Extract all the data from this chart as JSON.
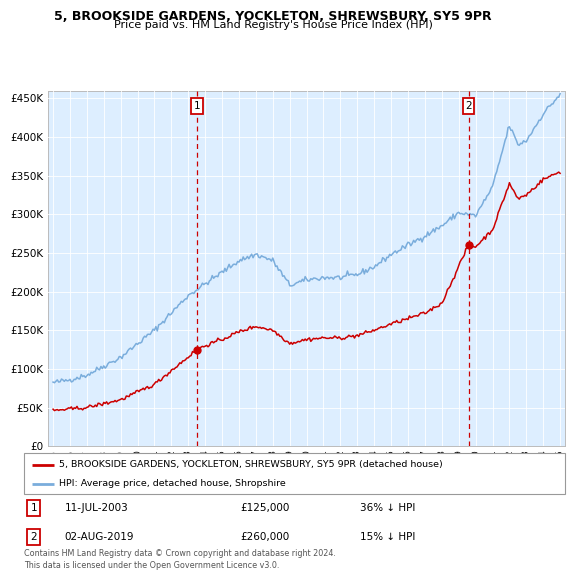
{
  "title": "5, BROOKSIDE GARDENS, YOCKLETON, SHREWSBURY, SY5 9PR",
  "subtitle": "Price paid vs. HM Land Registry's House Price Index (HPI)",
  "legend_line1": "5, BROOKSIDE GARDENS, YOCKLETON, SHREWSBURY, SY5 9PR (detached house)",
  "legend_line2": "HPI: Average price, detached house, Shropshire",
  "annotation1_date": "11-JUL-2003",
  "annotation1_price": "£125,000",
  "annotation1_hpi": "36% ↓ HPI",
  "annotation2_date": "02-AUG-2019",
  "annotation2_price": "£260,000",
  "annotation2_hpi": "15% ↓ HPI",
  "footnote": "Contains HM Land Registry data © Crown copyright and database right 2024.\nThis data is licensed under the Open Government Licence v3.0.",
  "red_color": "#cc0000",
  "blue_color": "#7aaddc",
  "bg_color": "#ffffff",
  "plot_bg_color": "#ddeeff",
  "vline_color": "#cc0000",
  "box_color": "#cc0000",
  "ylim": [
    0,
    460000
  ],
  "yticks": [
    0,
    50000,
    100000,
    150000,
    200000,
    250000,
    300000,
    350000,
    400000,
    450000
  ],
  "ytick_labels": [
    "£0",
    "£50K",
    "£100K",
    "£150K",
    "£200K",
    "£250K",
    "£300K",
    "£350K",
    "£400K",
    "£450K"
  ],
  "sale1_x": 2003.53,
  "sale1_y": 125000,
  "sale2_x": 2019.58,
  "sale2_y": 260000,
  "xlim_left": 1994.7,
  "xlim_right": 2025.3
}
